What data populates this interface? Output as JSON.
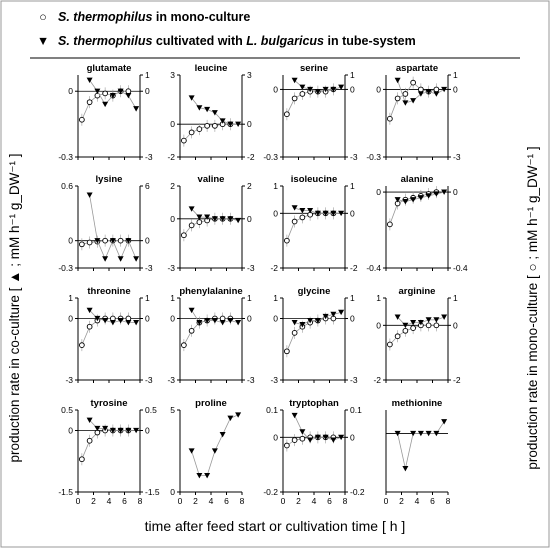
{
  "legend": {
    "mono": {
      "symbol": "○",
      "species": "S. thermophilus",
      "text": " in mono-culture"
    },
    "co": {
      "symbol": "▼",
      "species": "S. thermophilus",
      "mid": " cultivated with ",
      "partner": "L. bulgaricus",
      "text": " in tube-system"
    }
  },
  "axes": {
    "left_label": "production rate in co-culture [ ▲ ; mM h⁻¹ g_DW⁻¹ ]",
    "right_label": "production rate in mono-culture [ ○ ; mM h⁻¹ g_DW⁻¹ ]",
    "x_label": "time after feed start or cultivation time [ h ]",
    "x_ticks": [
      "0",
      "2",
      "4",
      "6",
      "8"
    ]
  },
  "chart_data": [
    {
      "type": "scatter",
      "title": "glutamate",
      "left_ticks": [
        "0",
        "-0.3"
      ],
      "right_ticks": [
        "1",
        "0",
        "-3"
      ],
      "xlim": [
        0,
        8
      ],
      "series": [
        {
          "marker": "circle",
          "x": [
            0.5,
            1.5,
            2.5,
            3.5,
            4.5,
            5.5,
            6.5
          ],
          "y": [
            -0.13,
            -0.05,
            -0.02,
            -0.01,
            -0.02,
            0.0,
            0.0
          ]
        },
        {
          "marker": "triangle",
          "x": [
            1.5,
            2.5,
            3.5,
            4.5,
            5.5,
            6.5,
            7.5
          ],
          "y": [
            0.05,
            0.0,
            -0.06,
            -0.02,
            0.0,
            -0.02,
            -0.08
          ]
        }
      ]
    },
    {
      "type": "scatter",
      "title": "leucine",
      "left_ticks": [
        "3",
        "0",
        "-2"
      ],
      "right_ticks": [
        "3",
        "0",
        "-2"
      ],
      "xlim": [
        0,
        8
      ],
      "series": [
        {
          "marker": "circle",
          "x": [
            0.5,
            1.5,
            2.5,
            3.5,
            4.5,
            5.5,
            6.5
          ],
          "y": [
            -1.0,
            -0.5,
            -0.3,
            -0.1,
            -0.1,
            0.0,
            0.0
          ]
        },
        {
          "marker": "triangle",
          "x": [
            1.5,
            2.5,
            3.5,
            4.5,
            5.5,
            6.5,
            7.5
          ],
          "y": [
            1.6,
            1.0,
            0.9,
            0.7,
            0.2,
            0.0,
            0.0
          ]
        }
      ]
    },
    {
      "type": "scatter",
      "title": "serine",
      "left_ticks": [
        "0",
        "-0.3"
      ],
      "right_ticks": [
        "1",
        "0",
        "-3"
      ],
      "xlim": [
        0,
        8
      ],
      "series": [
        {
          "marker": "circle",
          "x": [
            0.5,
            1.5,
            2.5,
            3.5,
            4.5,
            5.5,
            6.5
          ],
          "y": [
            -0.11,
            -0.04,
            -0.02,
            -0.01,
            -0.01,
            -0.01,
            0.0
          ]
        },
        {
          "marker": "triangle",
          "x": [
            1.5,
            2.5,
            3.5,
            4.5,
            5.5,
            6.5,
            7.5
          ],
          "y": [
            0.04,
            0.01,
            0.0,
            -0.01,
            0.0,
            0.0,
            0.01
          ]
        }
      ]
    },
    {
      "type": "scatter",
      "title": "aspartate",
      "left_ticks": [
        "0",
        "-0.3"
      ],
      "right_ticks": [
        "1",
        "0",
        "-3"
      ],
      "xlim": [
        0,
        8
      ],
      "series": [
        {
          "marker": "circle",
          "x": [
            0.5,
            1.5,
            2.5,
            3.5,
            4.5,
            5.5,
            6.5
          ],
          "y": [
            -0.13,
            -0.04,
            -0.02,
            0.03,
            0.0,
            -0.01,
            0.0
          ]
        },
        {
          "marker": "triangle",
          "x": [
            1.5,
            2.5,
            3.5,
            4.5,
            5.5,
            6.5,
            7.5
          ],
          "y": [
            0.04,
            -0.06,
            -0.05,
            -0.02,
            -0.01,
            -0.02,
            0.0
          ]
        }
      ]
    },
    {
      "type": "scatter",
      "title": "lysine",
      "left_ticks": [
        "0.6",
        "0",
        "-0.3"
      ],
      "right_ticks": [
        "6",
        "0",
        "-3"
      ],
      "xlim": [
        0,
        8
      ],
      "series": [
        {
          "marker": "circle",
          "x": [
            0.5,
            1.5,
            2.5,
            3.5,
            4.5,
            5.5,
            6.5
          ],
          "y": [
            -0.04,
            -0.02,
            -0.01,
            0.0,
            0.0,
            0.0,
            0.0
          ]
        },
        {
          "marker": "triangle",
          "x": [
            1.5,
            2.5,
            3.5,
            4.5,
            5.5,
            6.5,
            7.5
          ],
          "y": [
            0.5,
            0.0,
            -0.2,
            0.0,
            -0.2,
            0.0,
            -0.2
          ]
        }
      ]
    },
    {
      "type": "scatter",
      "title": "valine",
      "left_ticks": [
        "2",
        "0",
        "-3"
      ],
      "right_ticks": [
        "2",
        "0",
        "-3"
      ],
      "xlim": [
        0,
        8
      ],
      "series": [
        {
          "marker": "circle",
          "x": [
            0.5,
            1.5,
            2.5,
            3.5,
            4.5,
            5.5,
            6.5
          ],
          "y": [
            -1.0,
            -0.4,
            -0.2,
            -0.1,
            0.0,
            0.0,
            0.0
          ]
        },
        {
          "marker": "triangle",
          "x": [
            1.5,
            2.5,
            3.5,
            4.5,
            5.5,
            6.5,
            7.5
          ],
          "y": [
            0.6,
            0.1,
            0.1,
            0.0,
            0.0,
            0.0,
            -0.1
          ]
        }
      ]
    },
    {
      "type": "scatter",
      "title": "isoleucine",
      "left_ticks": [
        "1",
        "0",
        "-2"
      ],
      "right_ticks": [
        "1",
        "0",
        "-2"
      ],
      "xlim": [
        0,
        8
      ],
      "series": [
        {
          "marker": "circle",
          "x": [
            0.5,
            1.5,
            2.5,
            3.5,
            4.5,
            5.5,
            6.5
          ],
          "y": [
            -1.0,
            -0.3,
            -0.15,
            -0.05,
            0.0,
            0.0,
            0.0
          ]
        },
        {
          "marker": "triangle",
          "x": [
            1.5,
            2.5,
            3.5,
            4.5,
            5.5,
            6.5,
            7.5
          ],
          "y": [
            0.2,
            0.1,
            0.1,
            0.0,
            0.0,
            0.0,
            0.0
          ]
        }
      ]
    },
    {
      "type": "scatter",
      "title": "alanine",
      "left_ticks": [
        "0",
        "-0.4"
      ],
      "right_ticks": [
        "0",
        "-0.4"
      ],
      "xlim": [
        0,
        8
      ],
      "series": [
        {
          "marker": "circle",
          "x": [
            0.5,
            1.5,
            2.5,
            3.5,
            4.5,
            5.5,
            6.5
          ],
          "y": [
            -0.17,
            -0.06,
            -0.04,
            -0.03,
            -0.02,
            -0.01,
            0.0
          ]
        },
        {
          "marker": "triangle",
          "x": [
            1.5,
            2.5,
            3.5,
            4.5,
            5.5,
            6.5,
            7.5
          ],
          "y": [
            -0.04,
            -0.05,
            -0.04,
            -0.03,
            -0.02,
            -0.01,
            0.0
          ]
        }
      ]
    },
    {
      "type": "scatter",
      "title": "threonine",
      "left_ticks": [
        "1",
        "0",
        "-3"
      ],
      "right_ticks": [
        "1",
        "0",
        "-3"
      ],
      "xlim": [
        0,
        8
      ],
      "series": [
        {
          "marker": "circle",
          "x": [
            0.5,
            1.5,
            2.5,
            3.5,
            4.5,
            5.5,
            6.5
          ],
          "y": [
            -1.3,
            -0.4,
            -0.1,
            0.0,
            0.0,
            0.0,
            0.0
          ]
        },
        {
          "marker": "triangle",
          "x": [
            1.5,
            2.5,
            3.5,
            4.5,
            5.5,
            6.5,
            7.5
          ],
          "y": [
            0.4,
            0.0,
            -0.1,
            -0.2,
            -0.1,
            -0.2,
            -0.2
          ]
        }
      ]
    },
    {
      "type": "scatter",
      "title": "phenylalanine",
      "left_ticks": [
        "1",
        "0",
        "-3"
      ],
      "right_ticks": [
        "1",
        "0",
        "-3"
      ],
      "xlim": [
        0,
        8
      ],
      "series": [
        {
          "marker": "circle",
          "x": [
            0.5,
            1.5,
            2.5,
            3.5,
            4.5,
            5.5,
            6.5
          ],
          "y": [
            -1.3,
            -0.6,
            -0.2,
            -0.1,
            0.0,
            0.0,
            0.0
          ]
        },
        {
          "marker": "triangle",
          "x": [
            1.5,
            2.5,
            3.5,
            4.5,
            5.5,
            6.5,
            7.5
          ],
          "y": [
            0.4,
            -0.2,
            -0.1,
            -0.1,
            -0.2,
            -0.1,
            -0.2
          ]
        }
      ]
    },
    {
      "type": "scatter",
      "title": "glycine",
      "left_ticks": [
        "1",
        "0",
        "-3"
      ],
      "right_ticks": [
        "1",
        "0",
        "-3"
      ],
      "xlim": [
        0,
        8
      ],
      "series": [
        {
          "marker": "circle",
          "x": [
            0.5,
            1.5,
            2.5,
            3.5,
            4.5,
            5.5,
            6.5
          ],
          "y": [
            -1.6,
            -0.7,
            -0.4,
            -0.2,
            -0.1,
            0.0,
            0.0
          ]
        },
        {
          "marker": "triangle",
          "x": [
            1.5,
            2.5,
            3.5,
            4.5,
            5.5,
            6.5,
            7.5
          ],
          "y": [
            -0.2,
            -0.3,
            -0.1,
            -0.1,
            0.1,
            0.2,
            0.3
          ]
        }
      ]
    },
    {
      "type": "scatter",
      "title": "arginine",
      "left_ticks": [
        "1",
        "0",
        "-2"
      ],
      "right_ticks": [
        "1",
        "0",
        "-2"
      ],
      "xlim": [
        0,
        8
      ],
      "series": [
        {
          "marker": "circle",
          "x": [
            0.5,
            1.5,
            2.5,
            3.5,
            4.5,
            5.5,
            6.5
          ],
          "y": [
            -0.7,
            -0.4,
            -0.2,
            -0.1,
            0.0,
            0.0,
            0.0
          ]
        },
        {
          "marker": "triangle",
          "x": [
            1.5,
            2.5,
            3.5,
            4.5,
            5.5,
            6.5,
            7.5
          ],
          "y": [
            0.3,
            0.0,
            0.1,
            0.1,
            0.2,
            0.2,
            0.3
          ]
        }
      ]
    },
    {
      "type": "scatter",
      "title": "tyrosine",
      "left_ticks": [
        "0.5",
        "0",
        "-1.5"
      ],
      "right_ticks": [
        "0.5",
        "0",
        "-1.5"
      ],
      "xlim": [
        0,
        8
      ],
      "series": [
        {
          "marker": "circle",
          "x": [
            0.5,
            1.5,
            2.5,
            3.5,
            4.5,
            5.5,
            6.5
          ],
          "y": [
            -0.7,
            -0.25,
            -0.05,
            0.0,
            0.0,
            0.0,
            0.0
          ]
        },
        {
          "marker": "triangle",
          "x": [
            1.5,
            2.5,
            3.5,
            4.5,
            5.5,
            6.5,
            7.5
          ],
          "y": [
            0.25,
            0.05,
            0.05,
            0.0,
            0.0,
            0.0,
            0.0
          ]
        }
      ]
    },
    {
      "type": "scatter",
      "title": "proline",
      "left_ticks": [
        "5",
        "0"
      ],
      "right_ticks": [],
      "xlim": [
        0,
        8
      ],
      "series": [
        {
          "marker": "triangle",
          "x": [
            1.5,
            2.5,
            3.5,
            4.5,
            5.5,
            6.5,
            7.5
          ],
          "y": [
            2.5,
            1.0,
            1.0,
            2.5,
            3.5,
            4.5,
            4.7
          ]
        }
      ]
    },
    {
      "type": "scatter",
      "title": "tryptophan",
      "left_ticks": [
        "0.1",
        "0",
        "-0.2"
      ],
      "right_ticks": [
        "0.1",
        "0",
        "-0.2"
      ],
      "xlim": [
        0,
        8
      ],
      "series": [
        {
          "marker": "circle",
          "x": [
            0.5,
            1.5,
            2.5,
            3.5,
            4.5,
            5.5,
            6.5
          ],
          "y": [
            -0.03,
            -0.01,
            -0.005,
            0.0,
            0.0,
            0.0,
            0.0
          ]
        },
        {
          "marker": "triangle",
          "x": [
            1.5,
            2.5,
            3.5,
            4.5,
            5.5,
            6.5,
            7.5
          ],
          "y": [
            0.08,
            0.02,
            -0.01,
            0.0,
            0.0,
            -0.01,
            0.0
          ]
        }
      ]
    },
    {
      "type": "scatter",
      "title": "methionine",
      "left_ticks": [],
      "right_ticks": [],
      "xlim": [
        0,
        8
      ],
      "series": [
        {
          "marker": "triangle",
          "x": [
            1.5,
            2.5,
            3.5,
            4.5,
            5.5,
            6.5,
            7.5
          ],
          "y": [
            0.0,
            -0.03,
            0.0,
            0.0,
            0.0,
            0.0,
            0.01
          ]
        }
      ]
    }
  ]
}
